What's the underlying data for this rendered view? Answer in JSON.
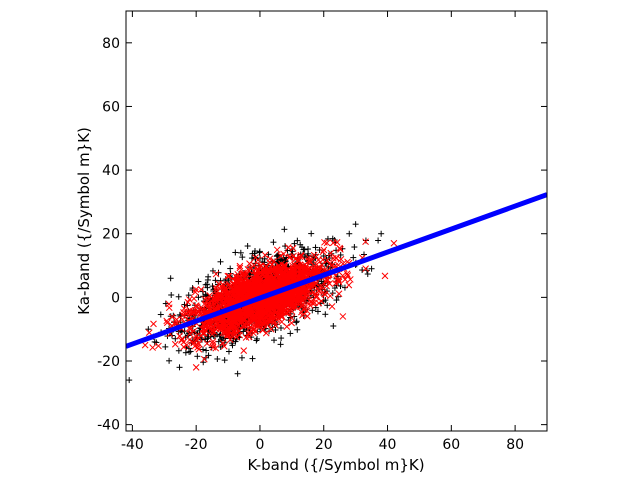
{
  "chart_data": {
    "type": "scatter",
    "xlabel": "K-band ({/Symbol m}K)",
    "ylabel": "Ka-band ({/Symbol m}K)",
    "xlim": [
      -42,
      90
    ],
    "ylim": [
      -42,
      90
    ],
    "xticks": [
      -40,
      -20,
      0,
      20,
      40,
      60,
      80
    ],
    "yticks": [
      -40,
      -20,
      0,
      20,
      40,
      60,
      80
    ],
    "grid": false,
    "legend": "none",
    "series": [
      {
        "marker": "plus",
        "color": "#000000",
        "distribution": {
          "center": [
            0,
            0
          ],
          "sd_x": 11.5,
          "sd_y": 7.0,
          "correlation": 0.6,
          "x_range": [
            -40,
            40
          ],
          "y_range": [
            -26,
            23
          ]
        },
        "points": [
          [
            -41,
            -26
          ],
          [
            -7,
            -24
          ],
          [
            -28,
            6
          ],
          [
            -31,
            -11
          ],
          [
            -35,
            -10
          ],
          [
            -33,
            -14
          ],
          [
            30,
            23
          ],
          [
            38,
            20
          ],
          [
            35,
            9
          ],
          [
            23,
            -9
          ],
          [
            20,
            13
          ],
          [
            28,
            20
          ],
          [
            -6,
            14
          ],
          [
            10,
            13
          ],
          [
            14,
            15
          ]
        ]
      },
      {
        "marker": "cross",
        "color": "#ff0000",
        "distribution": {
          "center": [
            0,
            0
          ],
          "sd_x": 10.5,
          "sd_y": 5.8,
          "correlation": 0.6,
          "x_range": [
            -38,
            42
          ],
          "y_range": [
            -22,
            18
          ]
        },
        "points": [
          [
            -36,
            -15
          ],
          [
            42,
            17
          ],
          [
            -20,
            -22
          ],
          [
            26,
            -6
          ],
          [
            -23,
            -5
          ]
        ]
      },
      {
        "marker": "line",
        "color": "#0000ff",
        "x": [
          -42,
          90
        ],
        "y": [
          -15.4,
          32.3
        ]
      }
    ]
  }
}
